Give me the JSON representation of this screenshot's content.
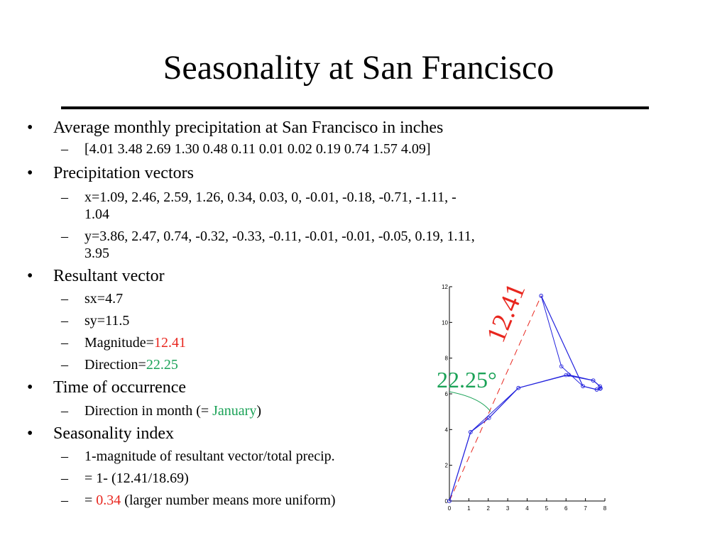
{
  "slide": {
    "title": "Seasonality at San Francisco",
    "bullets": [
      {
        "text": "Average monthly precipitation at San Francisco in inches",
        "subs": [
          "[4.01 3.48 2.69 1.30 0.48 0.11 0.01 0.02 0.19 0.74 1.57 4.09]"
        ]
      },
      {
        "text": "Precipitation vectors",
        "subs": [
          "x=1.09, 2.46, 2.59, 1.26, 0.34, 0.03, 0, -0.01, -0.18, -0.71, -1.11, -",
          "1.04",
          "y=3.86, 2.47, 0.74, -0.32, -0.33, -0.11, -0.01, -0.01, -0.05, 0.19, 1.11,",
          "3.95"
        ]
      },
      {
        "text": "Resultant vector",
        "subs": [
          "sx=4.7",
          "sy=11.5",
          "Magnitude=",
          "12.41",
          "Direction=",
          "22.25"
        ]
      },
      {
        "text": "Time of occurrence",
        "subs": [
          "Direction in month (= ",
          "January",
          ")"
        ]
      },
      {
        "text": "Seasonality index",
        "subs": [
          "1-magnitude of resultant vector/total precip.",
          "= 1- (12.41/18.69)",
          "= ",
          "0.34",
          " (larger number means more uniform)"
        ]
      }
    ],
    "bullet_glyph": "•",
    "dash_glyph": "–"
  },
  "colors": {
    "highlight_red": "#e8261e",
    "highlight_green": "#1aa257",
    "line_blue": "#2222dd"
  },
  "chart_data": {
    "type": "line",
    "title": "",
    "xlabel": "",
    "ylabel": "",
    "xlim": [
      0,
      8
    ],
    "ylim": [
      0,
      12
    ],
    "xticks": [
      "0",
      "1",
      "2",
      "3",
      "4",
      "5",
      "6",
      "7",
      "8"
    ],
    "yticks": [
      "0",
      "2",
      "4",
      "6",
      "8",
      "10",
      "12"
    ],
    "series": [
      {
        "kind": "cumulative-vector-path",
        "x": [
          0,
          1.09,
          3.55,
          6.14,
          7.4,
          7.74,
          7.77,
          7.77,
          7.76,
          7.58,
          6.87,
          5.76,
          4.72
        ],
        "y": [
          0,
          3.86,
          6.33,
          7.07,
          6.75,
          6.42,
          6.31,
          6.3,
          6.29,
          6.24,
          6.43,
          7.54,
          11.49
        ]
      },
      {
        "kind": "sorted-cumulative-path",
        "x": [
          0,
          1.09,
          2.04,
          3.55,
          6.0,
          7.4,
          7.75,
          7.78,
          7.77,
          7.76,
          7.58,
          6.87,
          4.72
        ],
        "y": [
          0,
          3.86,
          4.65,
          6.33,
          7.05,
          6.75,
          6.42,
          6.31,
          6.3,
          6.29,
          6.24,
          6.43,
          11.49
        ]
      }
    ],
    "resultant": {
      "x": [
        0,
        4.72
      ],
      "y": [
        0,
        11.49
      ],
      "label": "12.41"
    },
    "angle_label": "22.25°"
  }
}
